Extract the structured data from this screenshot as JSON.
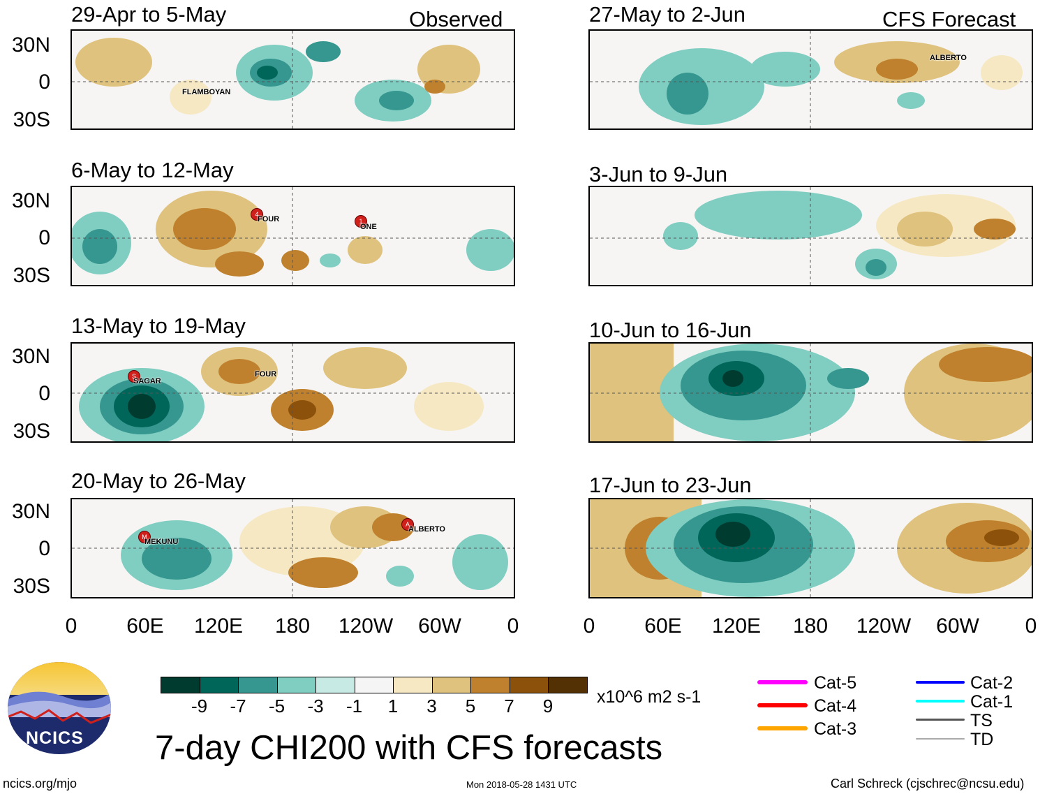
{
  "main_title": "7-day CHI200 with CFS forecasts",
  "observed_label": "Observed",
  "forecast_label": "CFS Forecast",
  "lat_labels": [
    "30N",
    "0",
    "30S"
  ],
  "lon_labels": [
    "0",
    "60E",
    "120E",
    "180",
    "120W",
    "60W",
    "0"
  ],
  "panels": [
    {
      "title": "29-Apr to 5-May",
      "storms": [
        {
          "name": "FLAMBOYAN",
          "letter": ""
        }
      ]
    },
    {
      "title": "6-May to 12-May",
      "storms": [
        {
          "name": "FOUR",
          "letter": "4"
        },
        {
          "name": "ONE",
          "letter": "1"
        }
      ]
    },
    {
      "title": "13-May to 19-May",
      "storms": [
        {
          "name": "SAGAR",
          "letter": "S"
        },
        {
          "name": "FOUR",
          "letter": ""
        }
      ]
    },
    {
      "title": "20-May to 26-May",
      "storms": [
        {
          "name": "MEKUNU",
          "letter": "M"
        },
        {
          "name": "ALBERTO",
          "letter": "A"
        }
      ]
    },
    {
      "title": "27-May to 2-Jun",
      "storms": [
        {
          "name": "ALBERTO",
          "letter": ""
        }
      ]
    },
    {
      "title": "3-Jun to 9-Jun",
      "storms": []
    },
    {
      "title": "10-Jun to 16-Jun",
      "storms": []
    },
    {
      "title": "17-Jun to 23-Jun",
      "storms": []
    }
  ],
  "colorbar": {
    "colors": [
      "#003b30",
      "#00665a",
      "#35978f",
      "#80cdc1",
      "#c7eae5",
      "#f5f5f5",
      "#f6e8c3",
      "#dfc27d",
      "#bf812d",
      "#8c510a",
      "#543005"
    ],
    "ticks": [
      "-9",
      "-7",
      "-5",
      "-3",
      "-1",
      "1",
      "3",
      "5",
      "7",
      "9"
    ],
    "units": "x10^6 m2 s-1"
  },
  "legend": [
    {
      "label": "Cat-5",
      "color": "#ff00ff"
    },
    {
      "label": "Cat-4",
      "color": "#ff0000"
    },
    {
      "label": "Cat-3",
      "color": "#ffa500"
    },
    {
      "label": "Cat-2",
      "color": "#0000ff"
    },
    {
      "label": "Cat-1",
      "color": "#00ffff"
    },
    {
      "label": "TS",
      "color": "#555555"
    },
    {
      "label": "TD",
      "color": "#aaaaaa"
    }
  ],
  "logo_text": "NCICS",
  "footer": {
    "left": "ncics.org/mjo",
    "center": "Mon 2018-05-28 1431 UTC",
    "right": "Carl Schreck (cjschrec@ncsu.edu)"
  }
}
